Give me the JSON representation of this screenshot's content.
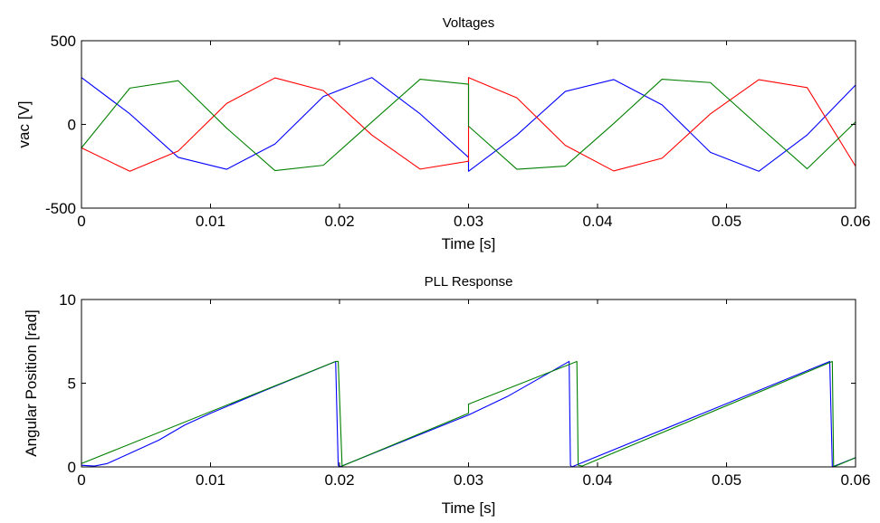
{
  "chart_data": [
    {
      "type": "line",
      "title": "Voltages",
      "xlabel": "Time [s]",
      "ylabel": "vac [V]",
      "xlim": [
        0,
        0.06
      ],
      "ylim": [
        -500,
        500
      ],
      "xticks": [
        0,
        0.01,
        0.02,
        0.03,
        0.04,
        0.05,
        0.06
      ],
      "xtick_labels": [
        "0",
        "0.01",
        "0.02",
        "0.03",
        "0.04",
        "0.05",
        "0.06"
      ],
      "yticks": [
        -500,
        0,
        500
      ],
      "ytick_labels": [
        "-500",
        "0",
        "500"
      ],
      "grid": false,
      "legend": "none",
      "series": [
        {
          "color": "#0000ff",
          "x": [
            0,
            0.00375,
            0.0075,
            0.01125,
            0.015,
            0.01875,
            0.0225,
            0.02625,
            0.03,
            0.03,
            0.03375,
            0.0375,
            0.04125,
            0.045,
            0.04875,
            0.0525,
            0.05625,
            0.06
          ],
          "y": [
            280,
            63,
            -197,
            -268,
            -117,
            167,
            280,
            63,
            -197,
            -280,
            -63,
            197,
            268,
            117,
            -167,
            -280,
            -63,
            235
          ]
        },
        {
          "color": "#ff0000",
          "x": [
            0,
            0.00375,
            0.0075,
            0.01125,
            0.015,
            0.01875,
            0.0225,
            0.02625,
            0.03,
            0.03,
            0.03375,
            0.0375,
            0.04125,
            0.045,
            0.04875,
            0.0525,
            0.05625,
            0.06
          ],
          "y": [
            -140,
            -280,
            -159,
            125,
            278,
            202,
            -63,
            -267,
            -220,
            280,
            159,
            -125,
            -278,
            -202,
            63,
            267,
            220,
            -250
          ]
        },
        {
          "color": "#008000",
          "x": [
            0,
            0.00375,
            0.0075,
            0.01125,
            0.015,
            0.01875,
            0.0225,
            0.02625,
            0.03,
            0.03,
            0.03375,
            0.0375,
            0.04125,
            0.045,
            0.04875,
            0.0525,
            0.05625,
            0.06
          ],
          "y": [
            -140,
            217,
            261,
            -22,
            -276,
            -244,
            14,
            270,
            240,
            -10,
            -268,
            -249,
            5,
            270,
            250,
            -10,
            -265,
            15
          ]
        }
      ]
    },
    {
      "type": "line",
      "title": "PLL Response",
      "xlabel": "Time [s]",
      "ylabel": "Angular Position [rad]",
      "xlim": [
        0,
        0.06
      ],
      "ylim": [
        0,
        10
      ],
      "xticks": [
        0,
        0.01,
        0.02,
        0.03,
        0.04,
        0.05,
        0.06
      ],
      "xtick_labels": [
        "0",
        "0.01",
        "0.02",
        "0.03",
        "0.04",
        "0.05",
        "0.06"
      ],
      "yticks": [
        0,
        5,
        10
      ],
      "ytick_labels": [
        "0",
        "5",
        "10"
      ],
      "grid": false,
      "legend": "none",
      "series": [
        {
          "color": "#0000ff",
          "x": [
            0,
            0.001,
            0.002,
            0.004,
            0.006,
            0.008,
            0.01,
            0.014,
            0.0197,
            0.0199,
            0.02,
            0.03,
            0.03,
            0.033,
            0.0378,
            0.0379,
            0.038,
            0.048,
            0.058,
            0.0582,
            0.06
          ],
          "y": [
            0.1,
            0.05,
            0.2,
            0.9,
            1.6,
            2.5,
            3.2,
            4.5,
            6.3,
            0.1,
            0.0,
            3.1,
            3.1,
            4.2,
            6.3,
            0.1,
            0.0,
            3.15,
            6.3,
            0.0,
            0.55
          ]
        },
        {
          "color": "#008000",
          "x": [
            0,
            0.0197,
            0.0199,
            0.0202,
            0.03,
            0.03,
            0.0384,
            0.0385,
            0.0388,
            0.0582,
            0.0583,
            0.06
          ],
          "y": [
            0.2,
            6.3,
            6.3,
            0.05,
            3.2,
            3.75,
            6.3,
            0.1,
            0.05,
            6.3,
            0.0,
            0.55
          ]
        }
      ]
    }
  ]
}
